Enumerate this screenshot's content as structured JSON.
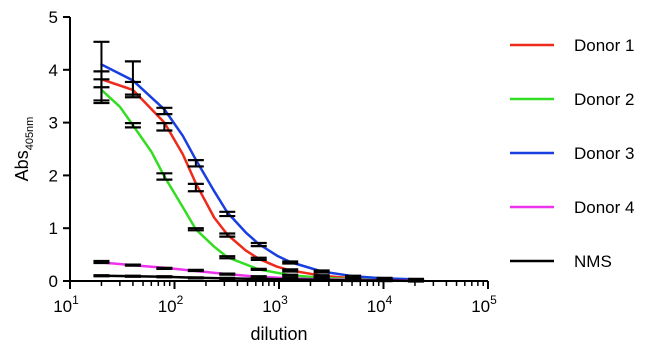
{
  "chart_data": {
    "type": "line",
    "xlabel": "dilution",
    "ylabel": {
      "main": "Abs",
      "sub": "405nm"
    },
    "xscale": "log",
    "xlim": [
      10,
      100000
    ],
    "ylim": [
      0,
      5
    ],
    "yticks": [
      "0",
      "1",
      "2",
      "3",
      "4",
      "5"
    ],
    "xticks": [
      {
        "base": "10",
        "exp": "1"
      },
      {
        "base": "10",
        "exp": "2"
      },
      {
        "base": "10",
        "exp": "3"
      },
      {
        "base": "10",
        "exp": "4"
      },
      {
        "base": "10",
        "exp": "5"
      }
    ],
    "grid": false,
    "legend_position": "right",
    "series": [
      {
        "name": "Donor 1",
        "color": "#ee2a1b",
        "points": [
          {
            "x": 20,
            "y": 3.82,
            "err": 0.15
          },
          {
            "x": 40,
            "y": 3.65,
            "err": 0.12
          },
          {
            "x": 80,
            "y": 2.92,
            "err": 0.07
          },
          {
            "x": 160,
            "y": 1.77,
            "err": 0.07
          },
          {
            "x": 320,
            "y": 0.87,
            "err": 0.03
          },
          {
            "x": 640,
            "y": 0.42,
            "err": 0.02
          },
          {
            "x": 1280,
            "y": 0.2,
            "err": 0.02
          },
          {
            "x": 2560,
            "y": 0.1,
            "err": 0.01
          },
          {
            "x": 5120,
            "y": 0.05,
            "err": 0.01
          },
          {
            "x": 10240,
            "y": 0.03,
            "err": 0.01
          },
          {
            "x": 20480,
            "y": 0.02,
            "err": 0.01
          }
        ],
        "curve": [
          [
            20,
            3.82
          ],
          [
            40,
            3.62
          ],
          [
            80,
            3.0
          ],
          [
            120,
            2.4
          ],
          [
            160,
            1.85
          ],
          [
            240,
            1.2
          ],
          [
            320,
            0.88
          ],
          [
            480,
            0.58
          ],
          [
            640,
            0.42
          ],
          [
            960,
            0.27
          ],
          [
            1280,
            0.2
          ],
          [
            2560,
            0.1
          ],
          [
            5120,
            0.05
          ],
          [
            10240,
            0.03
          ],
          [
            20480,
            0.02
          ]
        ]
      },
      {
        "name": "Donor 2",
        "color": "#33dd22",
        "points": [
          {
            "x": 20,
            "y": 3.62,
            "err": 0.2
          },
          {
            "x": 40,
            "y": 2.95,
            "err": 0.04
          },
          {
            "x": 80,
            "y": 1.98,
            "err": 0.06
          },
          {
            "x": 160,
            "y": 0.98,
            "err": 0.02
          },
          {
            "x": 320,
            "y": 0.45,
            "err": 0.02
          },
          {
            "x": 640,
            "y": 0.22,
            "err": 0.01
          },
          {
            "x": 1280,
            "y": 0.11,
            "err": 0.01
          },
          {
            "x": 2560,
            "y": 0.06,
            "err": 0.01
          },
          {
            "x": 5120,
            "y": 0.03,
            "err": 0.01
          },
          {
            "x": 10240,
            "y": 0.02,
            "err": 0.01
          },
          {
            "x": 20480,
            "y": 0.01,
            "err": 0.01
          }
        ],
        "curve": [
          [
            20,
            3.62
          ],
          [
            30,
            3.3
          ],
          [
            40,
            2.95
          ],
          [
            60,
            2.45
          ],
          [
            80,
            1.98
          ],
          [
            120,
            1.4
          ],
          [
            160,
            0.98
          ],
          [
            240,
            0.65
          ],
          [
            320,
            0.45
          ],
          [
            640,
            0.22
          ],
          [
            1280,
            0.11
          ],
          [
            2560,
            0.06
          ],
          [
            5120,
            0.03
          ],
          [
            10240,
            0.02
          ],
          [
            20480,
            0.01
          ]
        ]
      },
      {
        "name": "Donor 3",
        "color": "#1a3fe0",
        "points": [
          {
            "x": 20,
            "y": 3.95,
            "err": 0.58
          },
          {
            "x": 40,
            "y": 3.82,
            "err": 0.34
          },
          {
            "x": 80,
            "y": 3.22,
            "err": 0.06
          },
          {
            "x": 160,
            "y": 2.23,
            "err": 0.06
          },
          {
            "x": 320,
            "y": 1.27,
            "err": 0.04
          },
          {
            "x": 640,
            "y": 0.69,
            "err": 0.03
          },
          {
            "x": 1280,
            "y": 0.35,
            "err": 0.02
          },
          {
            "x": 2560,
            "y": 0.18,
            "err": 0.02
          },
          {
            "x": 5120,
            "y": 0.09,
            "err": 0.01
          },
          {
            "x": 10240,
            "y": 0.05,
            "err": 0.01
          },
          {
            "x": 20480,
            "y": 0.03,
            "err": 0.01
          }
        ],
        "curve": [
          [
            20,
            4.1
          ],
          [
            40,
            3.8
          ],
          [
            80,
            3.25
          ],
          [
            120,
            2.75
          ],
          [
            160,
            2.3
          ],
          [
            240,
            1.7
          ],
          [
            320,
            1.3
          ],
          [
            480,
            0.92
          ],
          [
            640,
            0.7
          ],
          [
            960,
            0.48
          ],
          [
            1280,
            0.36
          ],
          [
            2560,
            0.18
          ],
          [
            5120,
            0.09
          ],
          [
            10240,
            0.05
          ],
          [
            20480,
            0.03
          ]
        ]
      },
      {
        "name": "Donor 4",
        "color": "#ee33ee",
        "points": [
          {
            "x": 20,
            "y": 0.36,
            "err": 0.02
          },
          {
            "x": 40,
            "y": 0.3,
            "err": 0.01
          },
          {
            "x": 80,
            "y": 0.24,
            "err": 0.01
          },
          {
            "x": 160,
            "y": 0.2,
            "err": 0.01
          },
          {
            "x": 320,
            "y": 0.13,
            "err": 0.01
          },
          {
            "x": 640,
            "y": 0.08,
            "err": 0.01
          },
          {
            "x": 1280,
            "y": 0.05,
            "err": 0.01
          },
          {
            "x": 2560,
            "y": 0.03,
            "err": 0.01
          },
          {
            "x": 5120,
            "y": 0.02,
            "err": 0.01
          },
          {
            "x": 10240,
            "y": 0.01,
            "err": 0.01
          },
          {
            "x": 20480,
            "y": 0.01,
            "err": 0.01
          }
        ],
        "curve": [
          [
            20,
            0.35
          ],
          [
            40,
            0.3
          ],
          [
            80,
            0.25
          ],
          [
            160,
            0.19
          ],
          [
            320,
            0.13
          ],
          [
            640,
            0.08
          ],
          [
            1280,
            0.05
          ],
          [
            2560,
            0.03
          ],
          [
            5120,
            0.02
          ],
          [
            10240,
            0.01
          ],
          [
            20480,
            0.01
          ]
        ]
      },
      {
        "name": "NMS",
        "color": "#000000",
        "points": [
          {
            "x": 20,
            "y": 0.1,
            "err": 0.01
          },
          {
            "x": 40,
            "y": 0.09,
            "err": 0.01
          },
          {
            "x": 80,
            "y": 0.08,
            "err": 0.01
          },
          {
            "x": 160,
            "y": 0.06,
            "err": 0.01
          },
          {
            "x": 320,
            "y": 0.05,
            "err": 0.01
          },
          {
            "x": 640,
            "y": 0.04,
            "err": 0.01
          },
          {
            "x": 1280,
            "y": 0.03,
            "err": 0.01
          },
          {
            "x": 2560,
            "y": 0.02,
            "err": 0.01
          },
          {
            "x": 5120,
            "y": 0.01,
            "err": 0.01
          },
          {
            "x": 10240,
            "y": 0.01,
            "err": 0.01
          },
          {
            "x": 20480,
            "y": 0.0,
            "err": 0.01
          }
        ],
        "curve": [
          [
            20,
            0.1
          ],
          [
            40,
            0.09
          ],
          [
            80,
            0.08
          ],
          [
            160,
            0.06
          ],
          [
            320,
            0.05
          ],
          [
            640,
            0.04
          ],
          [
            1280,
            0.03
          ],
          [
            2560,
            0.02
          ],
          [
            5120,
            0.01
          ],
          [
            10240,
            0.01
          ],
          [
            20480,
            0.0
          ]
        ]
      }
    ]
  }
}
